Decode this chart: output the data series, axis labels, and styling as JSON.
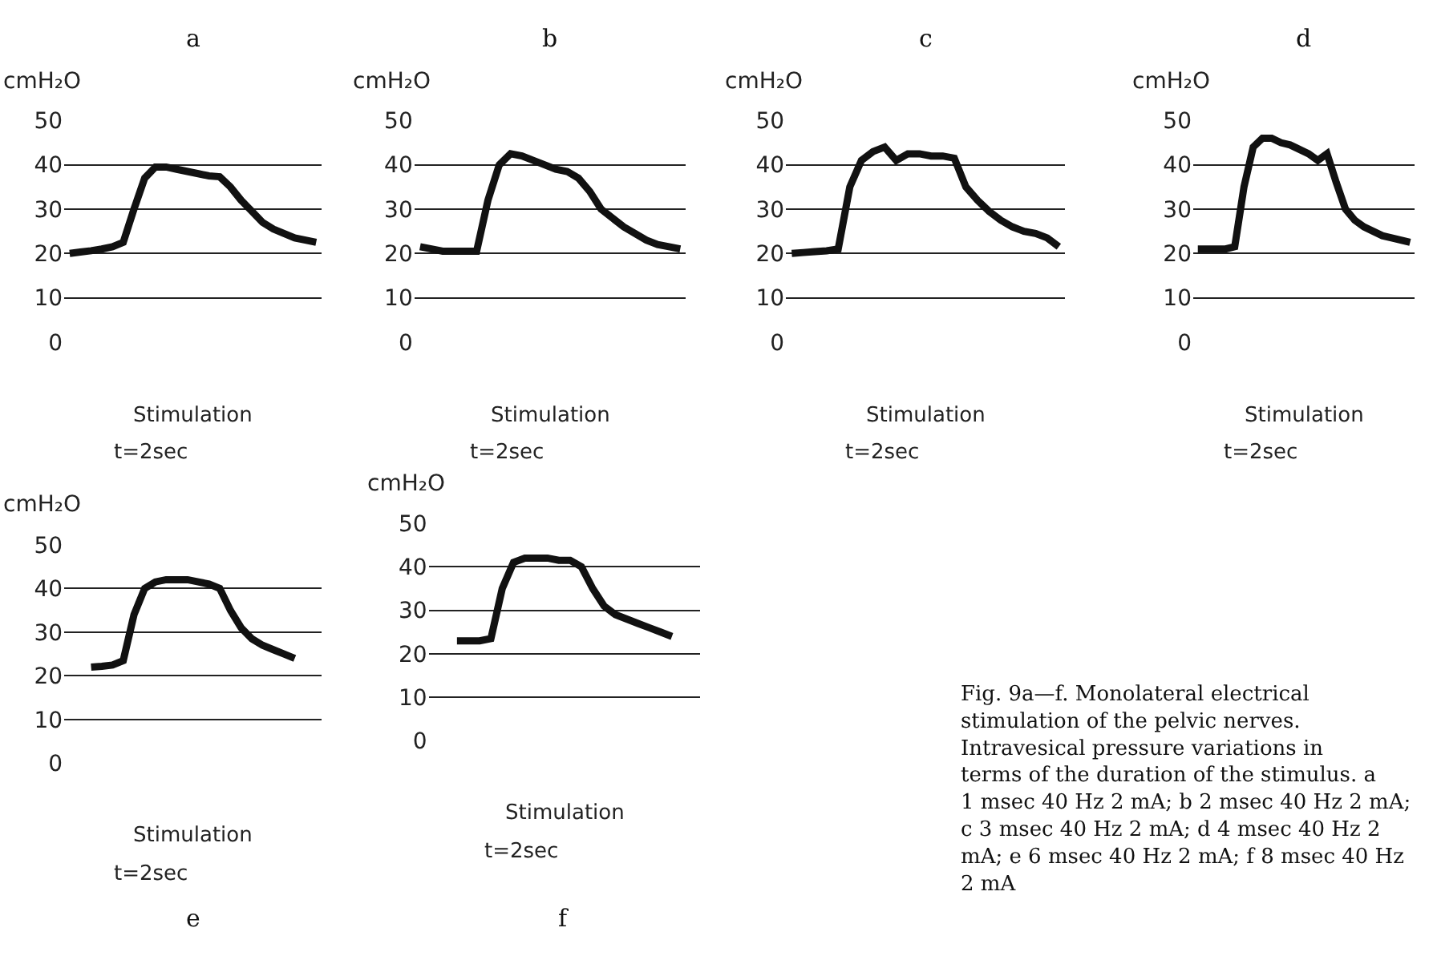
{
  "chart_data": [
    {
      "type": "line",
      "title": "a",
      "ylabel": "cmH₂O",
      "categories": [
        null,
        null,
        null,
        null,
        null,
        null,
        null,
        null,
        null,
        null,
        null,
        null,
        null,
        null,
        null,
        null,
        null,
        null,
        null,
        null,
        null,
        null,
        null,
        null
      ],
      "series": [
        {
          "color": "#111111",
          "values": [
            20,
            20.3,
            20.6,
            21,
            21.5,
            22.5,
            30,
            37,
            39.5,
            39.5,
            39,
            38.5,
            38,
            37.5,
            37.3,
            35,
            32,
            29.5,
            27,
            25.5,
            24.5,
            23.5,
            23,
            22.5
          ]
        }
      ],
      "ylim": [
        0,
        50
      ],
      "yticks": [
        0,
        10,
        20,
        30,
        40,
        50
      ],
      "grid": "y",
      "tick_labels": "y",
      "annotations": [
        "Stimulation",
        "t=2sec"
      ]
    },
    {
      "type": "line",
      "title": "b",
      "ylabel": "cmH₂O",
      "categories": [
        null,
        null,
        null,
        null,
        null,
        null,
        null,
        null,
        null,
        null,
        null,
        null,
        null,
        null,
        null,
        null,
        null,
        null,
        null,
        null,
        null,
        null,
        null,
        null
      ],
      "series": [
        {
          "color": "#111111",
          "values": [
            21.5,
            21,
            20.5,
            20.5,
            20.5,
            20.5,
            32,
            40,
            42.5,
            42,
            41,
            40,
            39,
            38.5,
            37,
            34,
            30,
            28,
            26,
            24.5,
            23,
            22,
            21.5,
            21
          ]
        }
      ],
      "ylim": [
        0,
        50
      ],
      "yticks": [
        0,
        10,
        20,
        30,
        40,
        50
      ],
      "grid": "y",
      "tick_labels": "y",
      "annotations": [
        "Stimulation",
        "t=2sec"
      ]
    },
    {
      "type": "line",
      "title": "c",
      "ylabel": "cmH₂O",
      "categories": [
        null,
        null,
        null,
        null,
        null,
        null,
        null,
        null,
        null,
        null,
        null,
        null,
        null,
        null,
        null,
        null,
        null,
        null,
        null,
        null,
        null,
        null,
        null,
        null
      ],
      "series": [
        {
          "color": "#111111",
          "values": [
            20,
            20.2,
            20.4,
            20.6,
            21,
            35,
            41,
            43,
            44,
            41,
            42.5,
            42.5,
            42,
            42,
            41.5,
            35,
            32,
            29.5,
            27.5,
            26,
            25,
            24.5,
            23.5,
            21.5
          ]
        }
      ],
      "ylim": [
        0,
        50
      ],
      "yticks": [
        0,
        10,
        20,
        30,
        40,
        50
      ],
      "grid": "y",
      "tick_labels": "y",
      "annotations": [
        "Stimulation",
        "t=2sec"
      ]
    },
    {
      "type": "line",
      "title": "d",
      "ylabel": "cmH₂O",
      "categories": [
        null,
        null,
        null,
        null,
        null,
        null,
        null,
        null,
        null,
        null,
        null,
        null,
        null,
        null,
        null,
        null,
        null,
        null,
        null,
        null,
        null,
        null,
        null,
        null
      ],
      "series": [
        {
          "color": "#111111",
          "values": [
            21,
            21,
            21,
            21,
            21.5,
            35,
            44,
            46,
            46,
            45,
            44.5,
            43.5,
            42.5,
            41,
            42.5,
            36,
            30,
            27.5,
            26,
            25,
            24,
            23.5,
            23,
            22.5
          ]
        }
      ],
      "ylim": [
        0,
        50
      ],
      "yticks": [
        0,
        10,
        20,
        30,
        40,
        50
      ],
      "grid": "y",
      "tick_labels": "y",
      "annotations": [
        "Stimulation",
        "t=2sec"
      ]
    },
    {
      "type": "line",
      "title": "e",
      "ylabel": "cmH₂O",
      "categories": [
        null,
        null,
        null,
        null,
        null,
        null,
        null,
        null,
        null,
        null,
        null,
        null,
        null,
        null,
        null,
        null,
        null,
        null,
        null,
        null,
        null,
        null,
        null,
        null
      ],
      "series": [
        {
          "color": "#111111",
          "values": [
            null,
            null,
            22,
            22.2,
            22.5,
            23.5,
            34,
            40,
            41.5,
            42,
            42,
            42,
            41.5,
            41,
            40,
            35,
            31,
            28.5,
            27,
            26,
            25,
            24,
            null,
            null
          ]
        }
      ],
      "ylim": [
        0,
        50
      ],
      "yticks": [
        0,
        10,
        20,
        30,
        40,
        50
      ],
      "grid": "y",
      "tick_labels": "y",
      "annotations": [
        "Stimulation",
        "t=2sec"
      ]
    },
    {
      "type": "line",
      "title": "f",
      "ylabel": "cmH₂O",
      "categories": [
        null,
        null,
        null,
        null,
        null,
        null,
        null,
        null,
        null,
        null,
        null,
        null,
        null,
        null,
        null,
        null,
        null,
        null,
        null,
        null,
        null,
        null,
        null,
        null
      ],
      "series": [
        {
          "color": "#111111",
          "values": [
            null,
            null,
            23,
            23,
            23,
            23.5,
            35,
            41,
            42,
            42,
            42,
            41.5,
            41.5,
            40,
            35,
            31,
            29,
            28,
            27,
            26,
            25,
            24,
            null,
            null
          ]
        }
      ],
      "ylim": [
        0,
        50
      ],
      "yticks": [
        0,
        10,
        20,
        30,
        40,
        50
      ],
      "grid": "y",
      "tick_labels": "y",
      "annotations": [
        "Stimulation",
        "t=2sec"
      ]
    },
    {
      "type": "other",
      "annotations": [
        "Fig. 9a—f. Monolateral electrical stimulation of the pelvic nerves. Intravesical pressure variations in terms of the duration of the stimulus. a 1 msec 40 Hz 2 mA; b 2 msec 40 Hz 2 mA; c 3 msec 40 Hz 2 mA; d 4 msec 40 Hz 2 mA; e 6 msec 40 Hz 2 mA; f 8 msec 40 Hz 2 mA"
      ]
    }
  ]
}
